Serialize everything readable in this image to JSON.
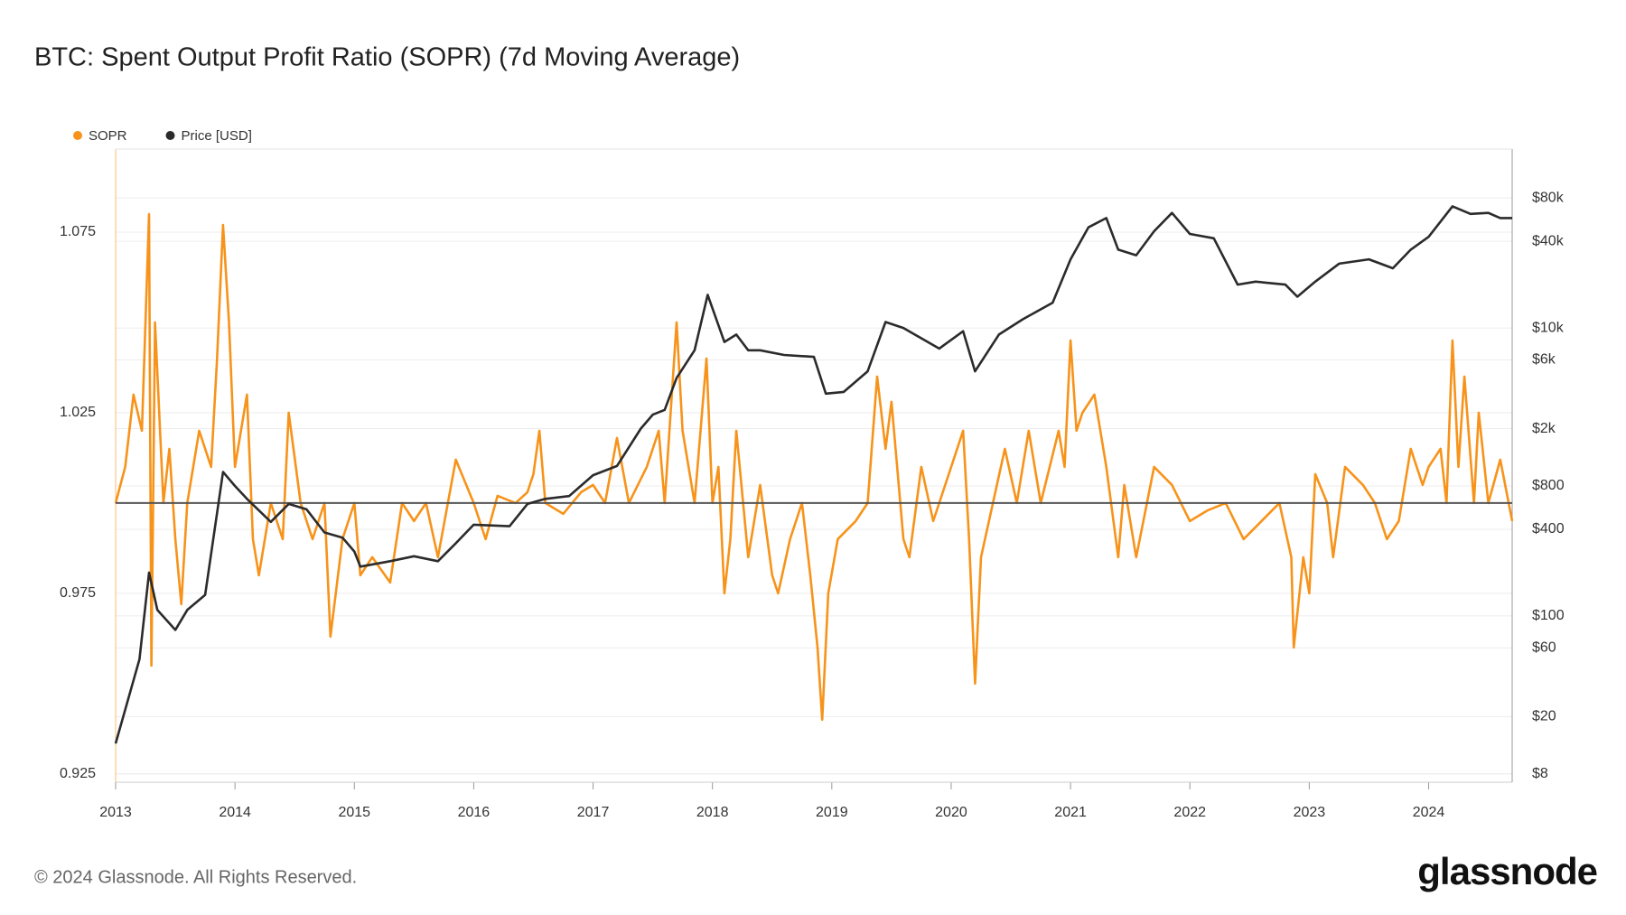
{
  "chart_data": {
    "type": "line",
    "title": "BTC: Spent Output Profit Ratio (SOPR) (7d Moving Average)",
    "footer": "© 2024 Glassnode. All Rights Reserved.",
    "brand": "glassnode",
    "xlim": [
      2013,
      2024.7
    ],
    "xticks": [
      2013,
      2014,
      2015,
      2016,
      2017,
      2018,
      2019,
      2020,
      2021,
      2022,
      2023,
      2024
    ],
    "ylim": [
      0.9227,
      1.098
    ],
    "yticks": [
      0.925,
      0.975,
      1.025,
      1.075
    ],
    "y2lim": [
      7,
      175000
    ],
    "y2log": true,
    "y2ticks": [
      {
        "value": 8,
        "label": "$8"
      },
      {
        "value": 20,
        "label": "$20"
      },
      {
        "value": 60,
        "label": "$60"
      },
      {
        "value": 100,
        "label": "$100"
      },
      {
        "value": 400,
        "label": "$400"
      },
      {
        "value": 800,
        "label": "$800"
      },
      {
        "value": 2000,
        "label": "$2k"
      },
      {
        "value": 6000,
        "label": "$6k"
      },
      {
        "value": 10000,
        "label": "$10k"
      },
      {
        "value": 40000,
        "label": "$40k"
      },
      {
        "value": 80000,
        "label": "$80k"
      }
    ],
    "reference_line": 1,
    "grid": true,
    "legend": "top-left",
    "series": [
      {
        "name": "SOPR",
        "color": "#f7931a",
        "x": [
          2013.0,
          2013.08,
          2013.15,
          2013.22,
          2013.28,
          2013.3,
          2013.33,
          2013.4,
          2013.45,
          2013.5,
          2013.55,
          2013.6,
          2013.7,
          2013.8,
          2013.85,
          2013.9,
          2013.95,
          2014.0,
          2014.1,
          2014.15,
          2014.2,
          2014.3,
          2014.4,
          2014.45,
          2014.55,
          2014.65,
          2014.75,
          2014.8,
          2014.9,
          2015.0,
          2015.05,
          2015.15,
          2015.3,
          2015.4,
          2015.5,
          2015.6,
          2015.7,
          2015.85,
          2016.0,
          2016.1,
          2016.2,
          2016.35,
          2016.45,
          2016.5,
          2016.55,
          2016.6,
          2016.75,
          2016.9,
          2017.0,
          2017.1,
          2017.2,
          2017.3,
          2017.45,
          2017.55,
          2017.6,
          2017.7,
          2017.75,
          2017.85,
          2017.95,
          2018.0,
          2018.05,
          2018.1,
          2018.15,
          2018.2,
          2018.3,
          2018.4,
          2018.5,
          2018.55,
          2018.65,
          2018.75,
          2018.82,
          2018.88,
          2018.92,
          2018.97,
          2019.05,
          2019.2,
          2019.3,
          2019.38,
          2019.45,
          2019.5,
          2019.6,
          2019.65,
          2019.75,
          2019.85,
          2020.0,
          2020.1,
          2020.15,
          2020.2,
          2020.25,
          2020.35,
          2020.45,
          2020.55,
          2020.65,
          2020.75,
          2020.9,
          2020.95,
          2021.0,
          2021.05,
          2021.1,
          2021.2,
          2021.3,
          2021.4,
          2021.45,
          2021.55,
          2021.7,
          2021.85,
          2022.0,
          2022.15,
          2022.3,
          2022.45,
          2022.6,
          2022.75,
          2022.85,
          2022.87,
          2022.95,
          2023.0,
          2023.05,
          2023.15,
          2023.2,
          2023.3,
          2023.45,
          2023.55,
          2023.65,
          2023.75,
          2023.85,
          2023.95,
          2024.0,
          2024.1,
          2024.15,
          2024.2,
          2024.25,
          2024.3,
          2024.38,
          2024.42,
          2024.5,
          2024.6,
          2024.7
        ],
        "values": [
          1.0,
          1.01,
          1.03,
          1.02,
          1.08,
          0.955,
          1.05,
          1.0,
          1.015,
          0.99,
          0.972,
          1.0,
          1.02,
          1.01,
          1.04,
          1.077,
          1.05,
          1.01,
          1.03,
          0.99,
          0.98,
          1.0,
          0.99,
          1.025,
          1.0,
          0.99,
          1.0,
          0.963,
          0.99,
          1.0,
          0.98,
          0.985,
          0.978,
          1.0,
          0.995,
          1.0,
          0.985,
          1.012,
          1.0,
          0.99,
          1.002,
          1.0,
          1.003,
          1.008,
          1.02,
          1.0,
          0.997,
          1.003,
          1.005,
          1.0,
          1.018,
          1.0,
          1.01,
          1.02,
          1.0,
          1.05,
          1.02,
          1.0,
          1.04,
          1.0,
          1.01,
          0.975,
          0.99,
          1.02,
          0.985,
          1.005,
          0.98,
          0.975,
          0.99,
          1.0,
          0.98,
          0.96,
          0.94,
          0.975,
          0.99,
          0.995,
          1.0,
          1.035,
          1.015,
          1.028,
          0.99,
          0.985,
          1.01,
          0.995,
          1.01,
          1.02,
          0.99,
          0.95,
          0.985,
          1.0,
          1.015,
          1.0,
          1.02,
          1.0,
          1.02,
          1.01,
          1.045,
          1.02,
          1.025,
          1.03,
          1.01,
          0.985,
          1.005,
          0.985,
          1.01,
          1.005,
          0.995,
          0.998,
          1.0,
          0.99,
          0.995,
          1.0,
          0.985,
          0.96,
          0.985,
          0.975,
          1.008,
          1.0,
          0.985,
          1.01,
          1.005,
          1.0,
          0.99,
          0.995,
          1.015,
          1.005,
          1.01,
          1.015,
          1.0,
          1.045,
          1.01,
          1.035,
          1.0,
          1.025,
          1.0,
          1.012,
          0.995
        ]
      },
      {
        "name": "Price [USD]",
        "color": "#2b2b2b",
        "axis": "y2",
        "x": [
          2013.0,
          2013.2,
          2013.28,
          2013.35,
          2013.5,
          2013.6,
          2013.75,
          2013.9,
          2014.0,
          2014.1,
          2014.3,
          2014.45,
          2014.6,
          2014.75,
          2014.9,
          2015.0,
          2015.05,
          2015.3,
          2015.5,
          2015.7,
          2015.85,
          2016.0,
          2016.3,
          2016.45,
          2016.6,
          2016.8,
          2017.0,
          2017.2,
          2017.4,
          2017.5,
          2017.6,
          2017.7,
          2017.85,
          2017.96,
          2018.1,
          2018.2,
          2018.3,
          2018.4,
          2018.6,
          2018.85,
          2018.95,
          2019.1,
          2019.3,
          2019.45,
          2019.6,
          2019.9,
          2020.1,
          2020.2,
          2020.4,
          2020.6,
          2020.85,
          2021.0,
          2021.15,
          2021.3,
          2021.4,
          2021.55,
          2021.7,
          2021.85,
          2022.0,
          2022.2,
          2022.4,
          2022.55,
          2022.8,
          2022.9,
          2023.05,
          2023.25,
          2023.5,
          2023.7,
          2023.85,
          2024.0,
          2024.2,
          2024.35,
          2024.5,
          2024.6,
          2024.7
        ],
        "values": [
          13,
          50,
          200,
          110,
          80,
          110,
          140,
          1000,
          800,
          650,
          450,
          600,
          550,
          380,
          350,
          280,
          220,
          240,
          260,
          240,
          320,
          430,
          420,
          600,
          650,
          680,
          950,
          1100,
          2000,
          2500,
          2700,
          4500,
          7000,
          17000,
          8000,
          9000,
          7000,
          7000,
          6500,
          6300,
          3500,
          3600,
          5000,
          11000,
          10000,
          7200,
          9500,
          5000,
          9000,
          11500,
          15000,
          30000,
          50000,
          58000,
          35000,
          32000,
          47000,
          63000,
          45000,
          42000,
          20000,
          21000,
          20000,
          16500,
          21000,
          28000,
          30000,
          26000,
          35000,
          43000,
          70000,
          62000,
          63000,
          58000,
          58000
        ]
      }
    ]
  }
}
